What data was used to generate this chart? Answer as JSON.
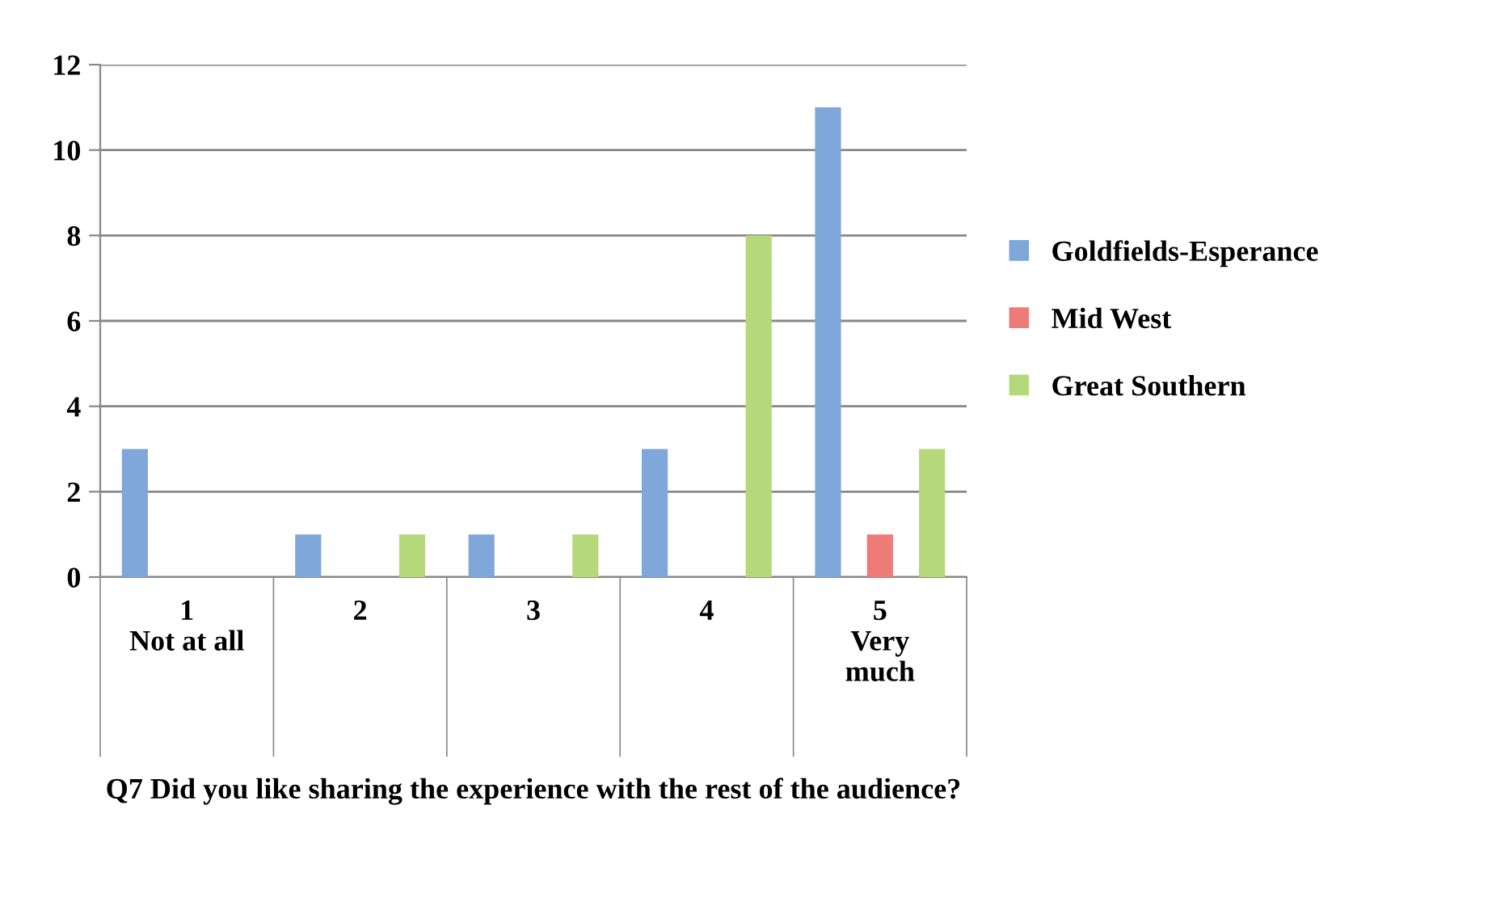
{
  "chart_data": {
    "type": "bar",
    "xlabel": "Q7 Did you like sharing the experience with the rest of the audience?",
    "categories": [
      "1\nNot at all",
      "2",
      "3",
      "4",
      "5\nVery\nmuch"
    ],
    "series": [
      {
        "name": "Goldfields-Esperance",
        "color": "#7fa7d9",
        "values": [
          3,
          1,
          1,
          3,
          11
        ]
      },
      {
        "name": "Mid West",
        "color": "#ee7b78",
        "values": [
          0,
          0,
          0,
          0,
          1
        ]
      },
      {
        "name": "Great Southern",
        "color": "#b5d97a",
        "values": [
          0,
          1,
          1,
          8,
          3
        ]
      }
    ],
    "ylim": [
      0,
      12
    ],
    "yticks": [
      0,
      2,
      4,
      6,
      8,
      10,
      12
    ],
    "grid": "y",
    "legend": "right"
  }
}
